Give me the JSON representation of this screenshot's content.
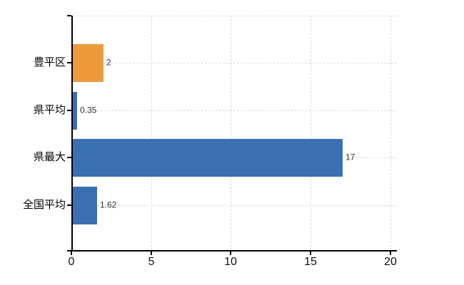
{
  "chart_data": {
    "type": "bar",
    "orientation": "horizontal",
    "title": "",
    "categories": [
      "豊平区",
      "県平均",
      "県最大",
      "全国平均"
    ],
    "series": [
      {
        "name": "values",
        "values": [
          2,
          0.35,
          17,
          1.62
        ]
      }
    ],
    "value_labels": [
      "2",
      "0.35",
      "17",
      "1.62"
    ],
    "bar_colors": [
      "#ed9a3d",
      "#3a6fb2",
      "#3a6fb2",
      "#3a6fb2"
    ],
    "xlim": [
      0,
      20
    ],
    "x_ticks": [
      "0",
      "5",
      "10",
      "15",
      "20"
    ],
    "grid": true,
    "legend": false
  },
  "colors": {
    "highlight_bar": "#ed9a3d",
    "default_bar": "#3a6fb2",
    "gridline": "#d9d9d9",
    "axis": "#000000",
    "category_label": "#000000",
    "value_label": "#333333",
    "tick_label": "#111111",
    "background": "#ffffff"
  }
}
